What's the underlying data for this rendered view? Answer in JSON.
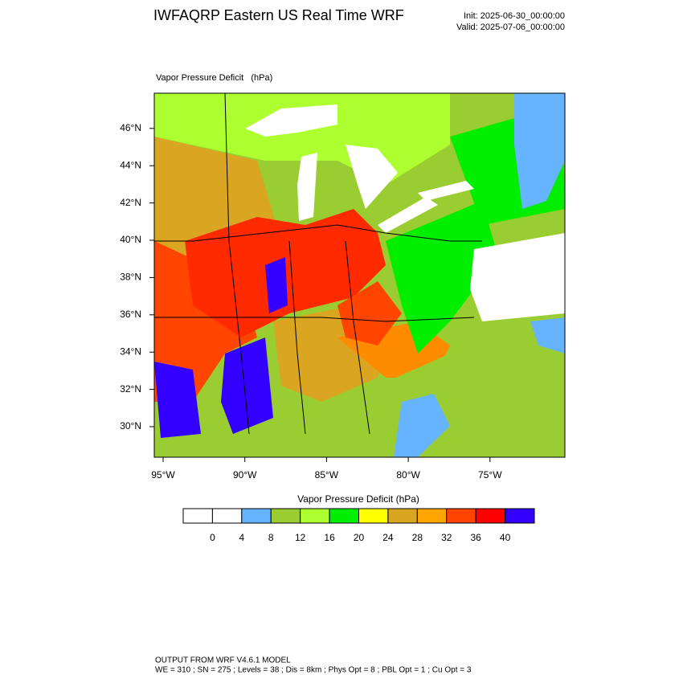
{
  "header": {
    "title": "IWFAQRP Eastern US Real Time WRF",
    "init": "Init: 2025-06-30_00:00:00",
    "valid": "Valid: 2025-07-06_00:00:00"
  },
  "map": {
    "subtitle": "Vapor Pressure Deficit   (hPa)",
    "lat_labels": [
      "30°N",
      "32°N",
      "34°N",
      "36°N",
      "38°N",
      "40°N",
      "42°N",
      "44°N",
      "46°N"
    ],
    "lon_labels": [
      "95°W",
      "90°W",
      "85°W",
      "80°W",
      "75°W"
    ]
  },
  "colorbar": {
    "title": "Vapor Pressure Deficit  (hPa)",
    "levels": [
      0,
      4,
      8,
      12,
      16,
      20,
      24,
      28,
      32,
      36,
      40
    ],
    "colors": [
      "#ffffff",
      "#ffffff",
      "#66b3ff",
      "#9acd32",
      "#adff2f",
      "#00ee00",
      "#ffff00",
      "#daa520",
      "#ffa500",
      "#ff4500",
      "#ff0000",
      "#3300ff"
    ]
  },
  "footer": {
    "line1": "OUTPUT FROM WRF V4.6.1 MODEL",
    "line2": "WE = 310 ; SN = 275 ; Levels = 38 ; Dis = 8km ; Phys Opt = 8 ; PBL Opt = 1 ; Cu Opt = 3"
  }
}
